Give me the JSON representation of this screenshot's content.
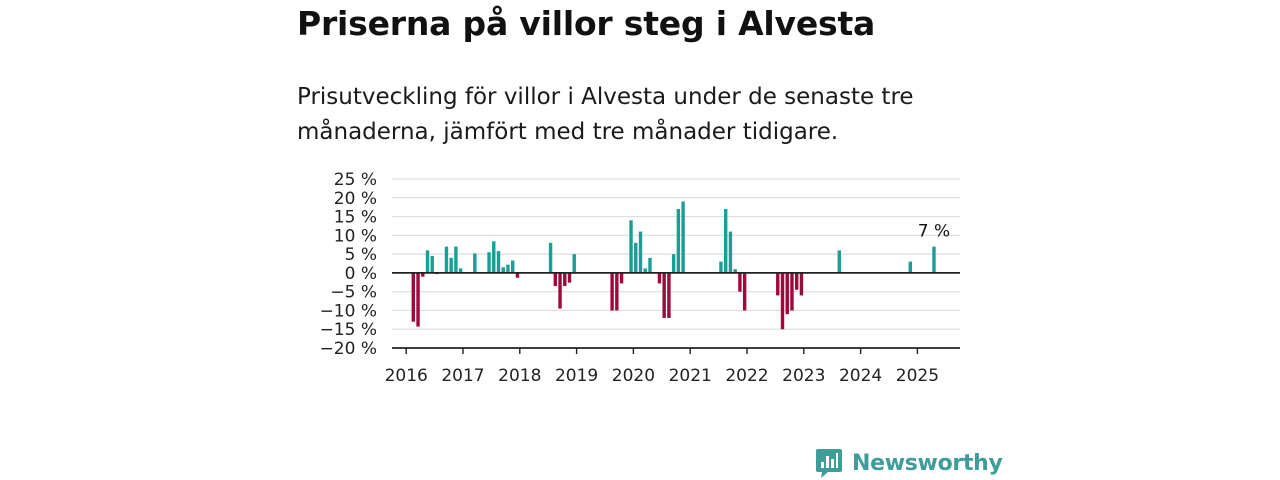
{
  "header": {
    "title": "Priserna på villor steg i Alvesta",
    "subtitle": "Prisutveckling för villor i Alvesta under de senaste tre månaderna, jämfört med tre månader tidigare."
  },
  "brand": {
    "name": "Newsworthy"
  },
  "colors": {
    "positive": "#1a9e96",
    "negative": "#9c0a3c",
    "grid": "#dddddd",
    "axis": "#222222",
    "brand": "#3e9c9a"
  },
  "chart_data": {
    "type": "bar",
    "ylim": [
      -20,
      25
    ],
    "yticks": [
      25,
      20,
      15,
      10,
      5,
      0,
      -5,
      -10,
      -15,
      -20
    ],
    "ytick_labels": [
      "25 %",
      "20 %",
      "15 %",
      "10 %",
      "5 %",
      "0 %",
      "−5 %",
      "−10 %",
      "−15 %",
      "−20 %"
    ],
    "xlim": [
      "2015-10",
      "2025-09"
    ],
    "xticks": [
      "2016",
      "2017",
      "2018",
      "2019",
      "2020",
      "2021",
      "2022",
      "2023",
      "2024",
      "2025"
    ],
    "grid": true,
    "annotation": {
      "date": "2025-04",
      "label": "7 %"
    },
    "series": [
      {
        "points": [
          {
            "date": "2016-02",
            "value": -13
          },
          {
            "date": "2016-03",
            "value": -14.3
          },
          {
            "date": "2016-04",
            "value": -1
          },
          {
            "date": "2016-05",
            "value": 6
          },
          {
            "date": "2016-06",
            "value": 4.5
          },
          {
            "date": "2016-07",
            "value": -0.3
          },
          {
            "date": "2016-09",
            "value": 7
          },
          {
            "date": "2016-10",
            "value": 4
          },
          {
            "date": "2016-11",
            "value": 7
          },
          {
            "date": "2016-12",
            "value": 1.2
          },
          {
            "date": "2017-03",
            "value": 5.2
          },
          {
            "date": "2017-06",
            "value": 5.5
          },
          {
            "date": "2017-07",
            "value": 8.4
          },
          {
            "date": "2017-08",
            "value": 5.8
          },
          {
            "date": "2017-09",
            "value": 1.5
          },
          {
            "date": "2017-10",
            "value": 2.2
          },
          {
            "date": "2017-11",
            "value": 3.3
          },
          {
            "date": "2017-12",
            "value": -1.3
          },
          {
            "date": "2018-07",
            "value": 8
          },
          {
            "date": "2018-08",
            "value": -3.5
          },
          {
            "date": "2018-09",
            "value": -9.5
          },
          {
            "date": "2018-10",
            "value": -3.5
          },
          {
            "date": "2018-11",
            "value": -2.6
          },
          {
            "date": "2018-12",
            "value": 5
          },
          {
            "date": "2019-08",
            "value": -10
          },
          {
            "date": "2019-09",
            "value": -10
          },
          {
            "date": "2019-10",
            "value": -2.8
          },
          {
            "date": "2019-12",
            "value": 14
          },
          {
            "date": "2020-01",
            "value": 8
          },
          {
            "date": "2020-02",
            "value": 11
          },
          {
            "date": "2020-03",
            "value": 1.2
          },
          {
            "date": "2020-04",
            "value": 4
          },
          {
            "date": "2020-06",
            "value": -2.8
          },
          {
            "date": "2020-07",
            "value": -12
          },
          {
            "date": "2020-08",
            "value": -12
          },
          {
            "date": "2020-09",
            "value": 5
          },
          {
            "date": "2020-10",
            "value": 17
          },
          {
            "date": "2020-11",
            "value": 19
          },
          {
            "date": "2021-07",
            "value": 3
          },
          {
            "date": "2021-08",
            "value": 17
          },
          {
            "date": "2021-09",
            "value": 11
          },
          {
            "date": "2021-10",
            "value": 1
          },
          {
            "date": "2021-11",
            "value": -5
          },
          {
            "date": "2021-12",
            "value": -10
          },
          {
            "date": "2022-07",
            "value": -6
          },
          {
            "date": "2022-08",
            "value": -15
          },
          {
            "date": "2022-09",
            "value": -11
          },
          {
            "date": "2022-10",
            "value": -10
          },
          {
            "date": "2022-11",
            "value": -4.5
          },
          {
            "date": "2022-12",
            "value": -6
          },
          {
            "date": "2023-08",
            "value": 6
          },
          {
            "date": "2024-11",
            "value": 3
          },
          {
            "date": "2025-04",
            "value": 7
          }
        ]
      }
    ]
  }
}
